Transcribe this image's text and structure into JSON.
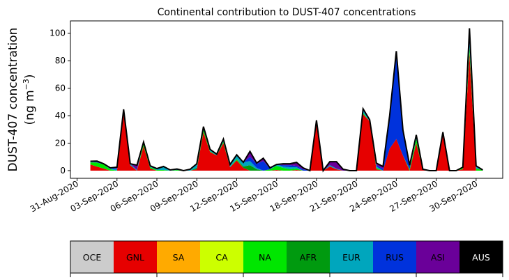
{
  "chart_data": {
    "type": "area",
    "stacked": true,
    "title": "Continental contribution to DUST-407 concentrations",
    "ylabel_line1": "DUST-407 concentration",
    "ylabel_line2": "(ng m",
    "ylabel_sup": "−3",
    "ylabel_close": ")",
    "xlabel": "",
    "ylim": [
      -5.6,
      109
    ],
    "xlim": [
      "2020-08-30 12:00",
      "2020-10-02 00:00"
    ],
    "yticks": [
      0,
      20,
      40,
      60,
      80,
      100
    ],
    "xticks": [
      "31-Aug-2020",
      "03-Sep-2020",
      "06-Sep-2020",
      "09-Sep-2020",
      "12-Sep-2020",
      "15-Sep-2020",
      "18-Sep-2020",
      "21-Sep-2020",
      "24-Sep-2020",
      "27-Sep-2020",
      "30-Sep-2020"
    ],
    "xtick_dates": [
      "2020-08-31",
      "2020-09-03",
      "2020-09-06",
      "2020-09-09",
      "2020-09-12",
      "2020-09-15",
      "2020-09-18",
      "2020-09-21",
      "2020-09-24",
      "2020-09-27",
      "2020-09-30"
    ],
    "x": [
      "2020-09-01 00:00",
      "2020-09-01 12:00",
      "2020-09-02 00:00",
      "2020-09-02 12:00",
      "2020-09-03 00:00",
      "2020-09-03 12:00",
      "2020-09-04 00:00",
      "2020-09-04 12:00",
      "2020-09-05 00:00",
      "2020-09-05 12:00",
      "2020-09-06 00:00",
      "2020-09-06 12:00",
      "2020-09-07 00:00",
      "2020-09-07 12:00",
      "2020-09-08 00:00",
      "2020-09-08 12:00",
      "2020-09-09 00:00",
      "2020-09-09 12:00",
      "2020-09-10 00:00",
      "2020-09-10 12:00",
      "2020-09-11 00:00",
      "2020-09-11 12:00",
      "2020-09-12 00:00",
      "2020-09-12 12:00",
      "2020-09-13 00:00",
      "2020-09-13 12:00",
      "2020-09-14 00:00",
      "2020-09-14 12:00",
      "2020-09-15 00:00",
      "2020-09-15 12:00",
      "2020-09-16 00:00",
      "2020-09-16 12:00",
      "2020-09-17 00:00",
      "2020-09-17 12:00",
      "2020-09-18 00:00",
      "2020-09-18 12:00",
      "2020-09-19 00:00",
      "2020-09-19 12:00",
      "2020-09-20 00:00",
      "2020-09-20 12:00",
      "2020-09-21 00:00",
      "2020-09-21 12:00",
      "2020-09-22 00:00",
      "2020-09-22 12:00",
      "2020-09-23 00:00",
      "2020-09-23 12:00",
      "2020-09-24 00:00",
      "2020-09-24 12:00",
      "2020-09-25 00:00",
      "2020-09-25 12:00",
      "2020-09-26 00:00",
      "2020-09-26 12:00",
      "2020-09-27 00:00",
      "2020-09-27 12:00",
      "2020-09-28 00:00",
      "2020-09-28 12:00",
      "2020-09-29 00:00",
      "2020-09-29 12:00",
      "2020-09-30 00:00",
      "2020-09-30 12:00"
    ],
    "series": [
      {
        "name": "OCE",
        "color": "#cccccc",
        "values": [
          0,
          0,
          0,
          0,
          0,
          0,
          0,
          0,
          0,
          0,
          0,
          0,
          0,
          0,
          0,
          0,
          0,
          0,
          0,
          0,
          0,
          0,
          0,
          0,
          0,
          0,
          0,
          0,
          0,
          0,
          0,
          0,
          0,
          0,
          0,
          0,
          0,
          0,
          0,
          0,
          0,
          0,
          0,
          0,
          0,
          0,
          0,
          0,
          0,
          0,
          0,
          0,
          0,
          0,
          0,
          0,
          0,
          0,
          0,
          0
        ]
      },
      {
        "name": "GNL",
        "color": "#e60000",
        "values": [
          4.5,
          2.9,
          1.5,
          0,
          0,
          41.6,
          4,
          0,
          17.8,
          1.5,
          0,
          0,
          0,
          0,
          0,
          0,
          1,
          28,
          13.5,
          11,
          20,
          2.5,
          7.5,
          2,
          0,
          0,
          0,
          0,
          0.5,
          0,
          0,
          0.5,
          0,
          0,
          35,
          0,
          3,
          1,
          0,
          0,
          0,
          41,
          36,
          1,
          0,
          16,
          23,
          11,
          0,
          20,
          0.5,
          0,
          0,
          26,
          0,
          0,
          1,
          85,
          0,
          0
        ]
      },
      {
        "name": "SA",
        "color": "#ffaa00",
        "values": [
          0,
          0,
          0,
          0,
          0,
          0,
          0,
          0,
          0,
          0,
          0,
          0,
          0,
          0,
          0,
          0,
          0,
          0,
          0,
          0,
          0,
          0,
          0,
          0,
          0,
          0,
          0,
          0,
          0,
          0,
          0,
          0,
          0,
          0,
          0,
          0,
          0,
          0,
          0,
          0,
          0,
          0,
          0,
          0,
          0,
          0,
          0,
          0,
          0,
          0,
          0,
          0,
          0,
          0,
          0,
          0,
          0,
          0,
          0,
          0
        ]
      },
      {
        "name": "CA",
        "color": "#ccff00",
        "values": [
          0,
          0,
          0,
          0,
          0,
          0,
          0,
          0,
          0,
          0,
          0,
          0,
          0,
          0,
          0,
          0,
          0,
          0,
          0,
          0,
          0,
          0,
          0,
          0,
          0,
          0,
          0,
          0,
          0,
          0,
          0,
          0,
          0,
          0,
          0,
          0,
          0,
          0,
          0,
          0,
          0,
          0,
          0,
          0,
          0,
          0,
          0,
          0,
          0,
          0,
          0,
          0,
          0,
          0,
          0,
          0,
          0,
          1,
          0,
          0
        ]
      },
      {
        "name": "NA",
        "color": "#00e600",
        "values": [
          1.5,
          3,
          3,
          1,
          0,
          2,
          0,
          0,
          2,
          1,
          0.5,
          0.5,
          0,
          0.5,
          0,
          0,
          0,
          2,
          0.5,
          0,
          1,
          0,
          1,
          0,
          0,
          0,
          0,
          1,
          3,
          2,
          1,
          1,
          0,
          0,
          1,
          0,
          0,
          0,
          0,
          0,
          0,
          1,
          0,
          1,
          0,
          0,
          0,
          0,
          1,
          3,
          0,
          0,
          0,
          0,
          0,
          0,
          1,
          4,
          1.5,
          0.5
        ]
      },
      {
        "name": "AFR",
        "color": "#009a0f",
        "values": [
          0,
          0,
          0,
          0,
          0,
          0,
          0,
          0,
          0,
          0,
          0,
          0,
          0,
          0,
          0,
          0,
          1,
          0,
          0,
          0,
          0,
          0,
          0,
          1,
          4,
          1,
          0,
          0,
          0,
          0,
          0,
          0,
          0,
          0,
          0,
          0,
          0,
          0,
          0,
          0,
          0,
          0,
          0,
          0,
          0,
          0,
          0,
          0,
          0,
          0,
          0,
          0,
          0,
          0,
          0,
          0,
          0,
          0,
          0,
          0
        ]
      },
      {
        "name": "EUR",
        "color": "#00a6bd",
        "values": [
          0.3,
          0,
          0,
          0.5,
          1,
          1,
          1,
          0.5,
          1,
          1,
          1,
          2.5,
          0.5,
          0.7,
          0,
          1,
          3,
          2,
          1.5,
          1,
          2,
          2,
          3,
          3,
          3,
          1,
          0,
          0,
          1,
          1,
          1.5,
          1,
          0,
          0,
          0.7,
          0,
          1,
          0.5,
          0,
          0,
          0,
          2,
          0,
          1,
          0,
          0,
          0,
          0,
          0,
          2,
          0,
          0,
          0,
          1,
          0,
          0,
          0,
          3,
          1,
          0
        ]
      },
      {
        "name": "RUS",
        "color": "#0032dc",
        "values": [
          0.5,
          1,
          0.5,
          0.5,
          0.5,
          0,
          0,
          0,
          0,
          0,
          0,
          0,
          0,
          0,
          0,
          0,
          0,
          0,
          0,
          0,
          0,
          0,
          0,
          0,
          3,
          3,
          7,
          0.5,
          0,
          1,
          1.5,
          1,
          1,
          0,
          0,
          0,
          0,
          0,
          0,
          0,
          0,
          1,
          1,
          1,
          1.5,
          23,
          62,
          18,
          3,
          1,
          0,
          0,
          0,
          1,
          0,
          0,
          0.5,
          9,
          1,
          0
        ]
      },
      {
        "name": "ASI",
        "color": "#6a0099",
        "values": [
          0,
          0,
          0,
          0,
          1,
          0,
          0,
          3.5,
          0,
          0,
          0,
          0,
          0,
          0,
          0,
          0,
          0,
          0,
          0,
          0,
          0,
          0,
          0,
          0,
          4,
          0.5,
          2,
          0.5,
          0,
          1,
          1,
          2.5,
          1,
          0,
          0,
          0,
          2.5,
          5,
          1,
          0,
          0,
          0,
          0,
          1.5,
          1.5,
          1,
          2,
          0.5,
          0,
          0,
          0.5,
          0,
          0,
          0,
          0,
          0,
          0,
          1.7,
          0,
          0
        ]
      },
      {
        "name": "AUS",
        "color": "#000000",
        "values": [
          0,
          0,
          0,
          0,
          0,
          0,
          0,
          0,
          0,
          0,
          0,
          0,
          0,
          0,
          0,
          0,
          0,
          0,
          0,
          0,
          0,
          0,
          0,
          0,
          0,
          0,
          0,
          0,
          0,
          0,
          0,
          0,
          0,
          0,
          0,
          0,
          0,
          0,
          0,
          0,
          0,
          0,
          0,
          0,
          0,
          0,
          0,
          0,
          0,
          0,
          0,
          0,
          0,
          0,
          0,
          0,
          0,
          0,
          0,
          0
        ]
      }
    ],
    "total_line_color": "#000000",
    "legend": {
      "placement": "bottom",
      "style": "colorbar",
      "entries": [
        {
          "label": "OCE",
          "color": "#cccccc",
          "text_color": "#000000"
        },
        {
          "label": "GNL",
          "color": "#e60000",
          "text_color": "#000000"
        },
        {
          "label": "SA",
          "color": "#ffaa00",
          "text_color": "#000000"
        },
        {
          "label": "CA",
          "color": "#ccff00",
          "text_color": "#000000"
        },
        {
          "label": "NA",
          "color": "#00e600",
          "text_color": "#000000"
        },
        {
          "label": "AFR",
          "color": "#009a0f",
          "text_color": "#000000"
        },
        {
          "label": "EUR",
          "color": "#00a6bd",
          "text_color": "#000000"
        },
        {
          "label": "RUS",
          "color": "#0032dc",
          "text_color": "#000000"
        },
        {
          "label": "ASI",
          "color": "#6a0099",
          "text_color": "#000000"
        },
        {
          "label": "AUS",
          "color": "#000000",
          "text_color": "#ffffff"
        }
      ]
    },
    "grid": false
  }
}
